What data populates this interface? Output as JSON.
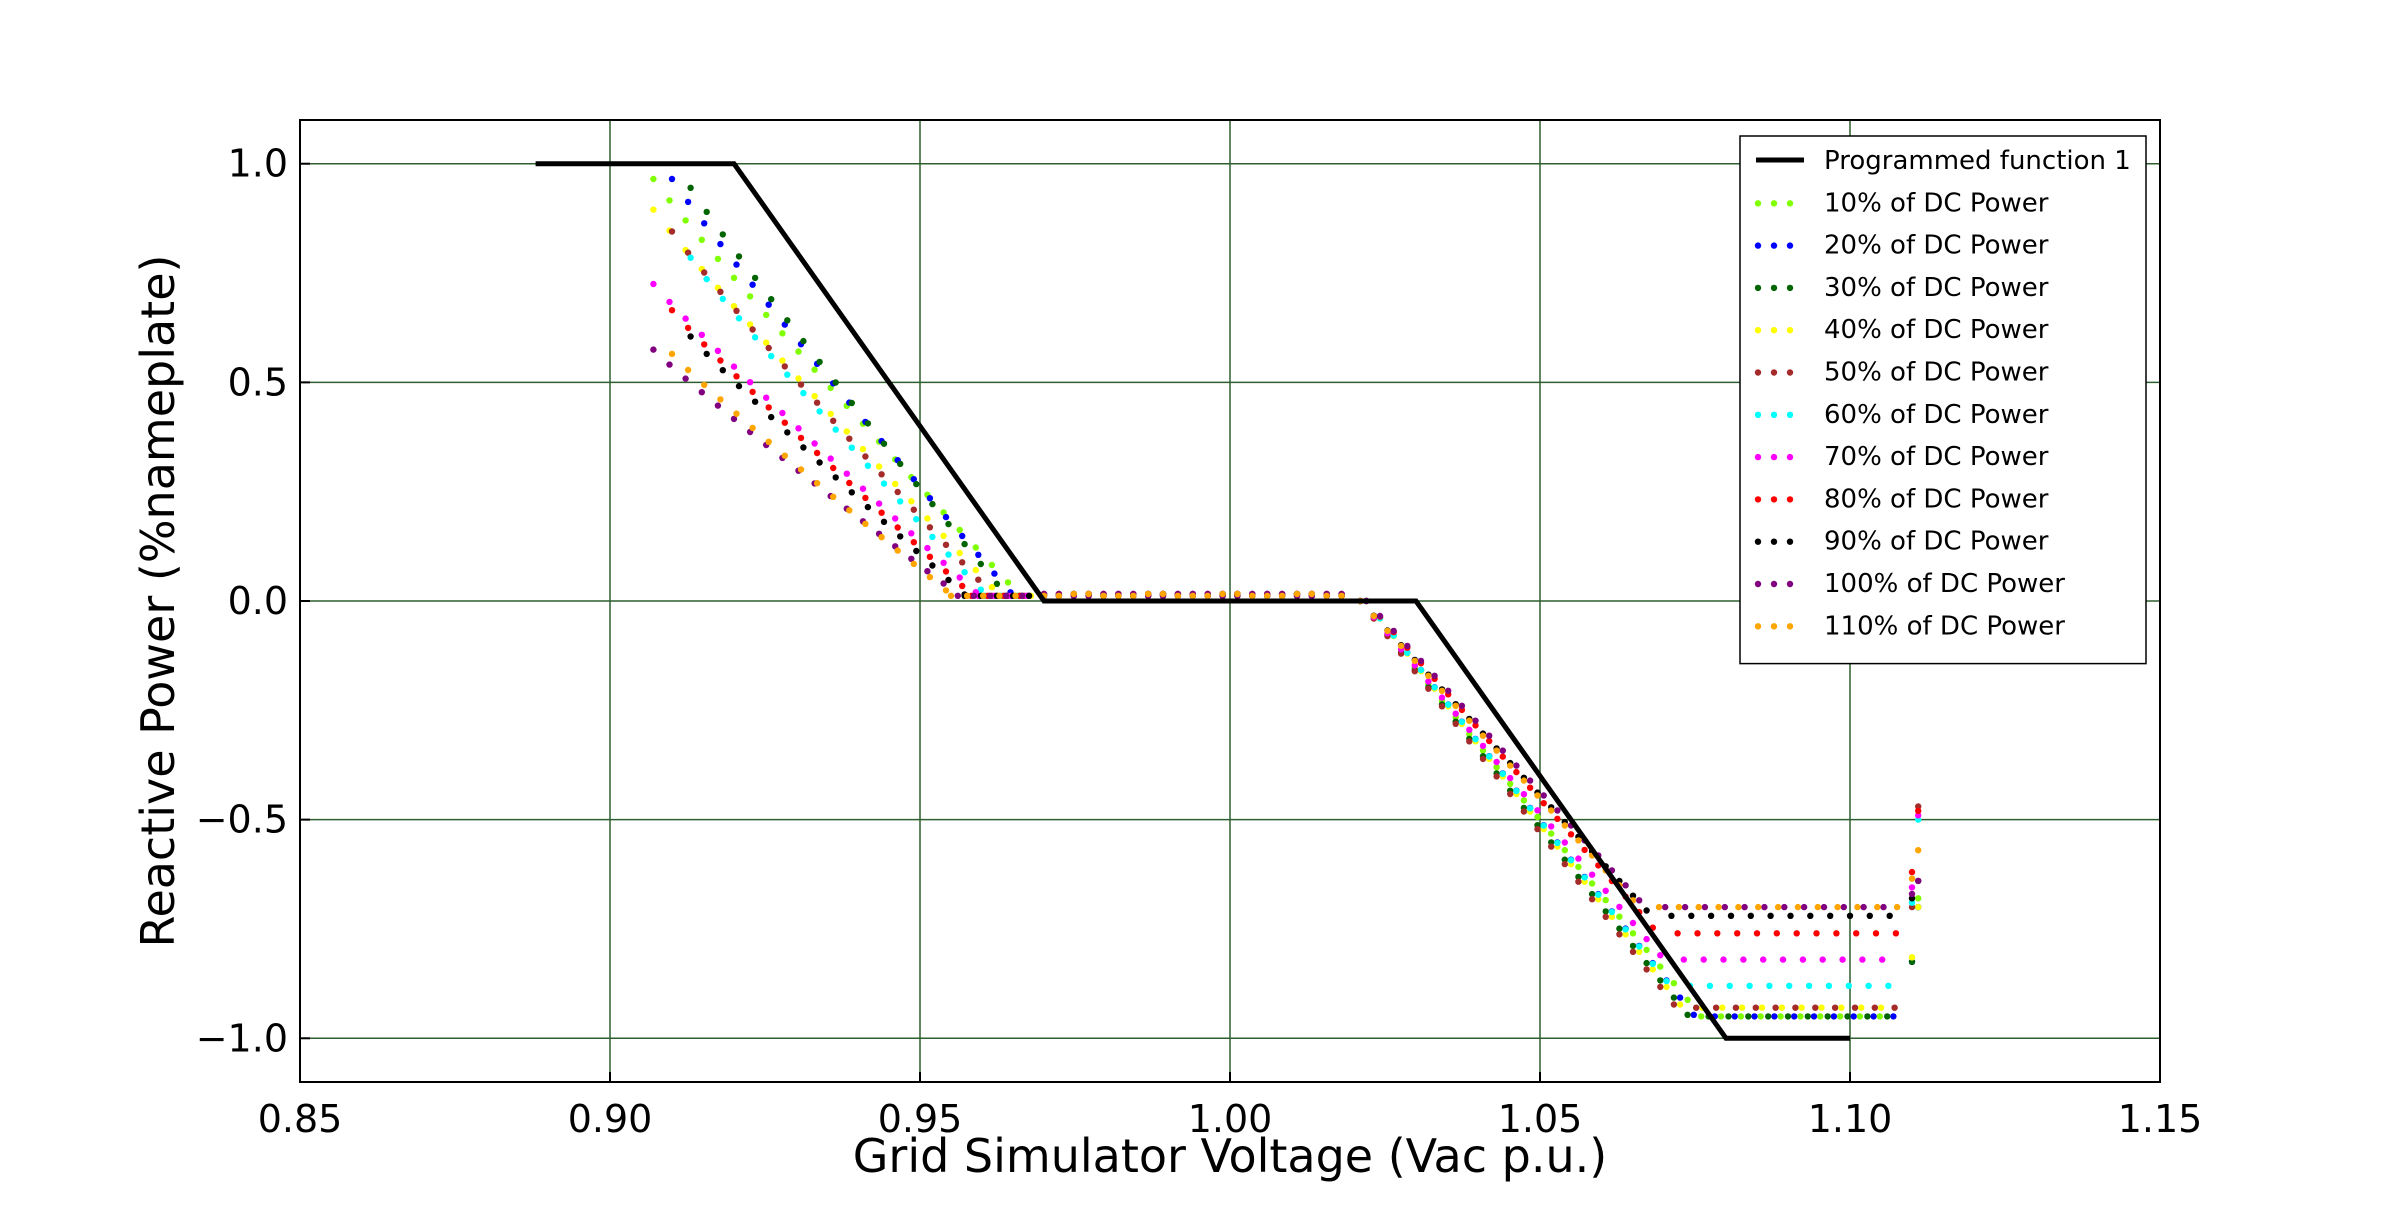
{
  "chart_data": {
    "type": "scatter",
    "xlabel": "Grid Simulator Voltage (Vac p.u.)",
    "ylabel": "Reactive Power (%nameplate)",
    "xlim": [
      0.85,
      1.15
    ],
    "ylim": [
      -1.1,
      1.1
    ],
    "x_ticks": [
      0.85,
      0.9,
      0.95,
      1.0,
      1.05,
      1.1,
      1.15
    ],
    "x_tick_labels": [
      "0.85",
      "0.90",
      "0.95",
      "1.00",
      "1.05",
      "1.10",
      "1.15"
    ],
    "y_ticks": [
      1.0,
      0.5,
      0.0,
      -0.5,
      -1.0
    ],
    "y_tick_labels": [
      "1.0",
      "0.5",
      "0.0",
      "−0.5",
      "−1.0"
    ],
    "grid": true,
    "grid_color": "#2f5f2f",
    "legend_position": "top-right",
    "programmed_function": {
      "name": "Programmed function 1",
      "color": "#000000",
      "x": [
        0.888,
        0.92,
        0.97,
        1.03,
        1.08,
        1.1
      ],
      "y": [
        1.0,
        1.0,
        0.0,
        0.0,
        -1.0,
        -1.0
      ]
    },
    "series": [
      {
        "name": "10% of DC Power",
        "color": "#7fff00",
        "low_q": 0.95,
        "high_q": -0.95,
        "tail": -0.68
      },
      {
        "name": "20% of DC Power",
        "color": "#0000ff",
        "low_q": 0.95,
        "high_q": -0.95,
        "tail": -0.7
      },
      {
        "name": "30% of DC Power",
        "color": "#006400",
        "low_q": 0.93,
        "high_q": -0.95,
        "tail": -0.7
      },
      {
        "name": "40% of DC Power",
        "color": "#ffff00",
        "low_q": 0.88,
        "high_q": -0.93,
        "tail": -0.7
      },
      {
        "name": "50% of DC Power",
        "color": "#a52a2a",
        "low_q": 0.83,
        "high_q": -0.93,
        "tail": -0.47
      },
      {
        "name": "60% of DC Power",
        "color": "#00ffff",
        "low_q": 0.77,
        "high_q": -0.88,
        "tail": -0.5
      },
      {
        "name": "70% of DC Power",
        "color": "#ff00ff",
        "low_q": 0.71,
        "high_q": -0.82,
        "tail": -0.49
      },
      {
        "name": "80% of DC Power",
        "color": "#ff0000",
        "low_q": 0.65,
        "high_q": -0.76,
        "tail": -0.48
      },
      {
        "name": "90% of DC Power",
        "color": "#000000",
        "low_q": 0.59,
        "high_q": -0.72,
        "tail": -0.64
      },
      {
        "name": "100% of DC Power",
        "color": "#800080",
        "low_q": 0.56,
        "high_q": -0.7,
        "tail": -0.64
      },
      {
        "name": "110% of DC Power",
        "color": "#ffa500",
        "low_q": 0.55,
        "high_q": -0.7,
        "tail": -0.57
      }
    ]
  }
}
